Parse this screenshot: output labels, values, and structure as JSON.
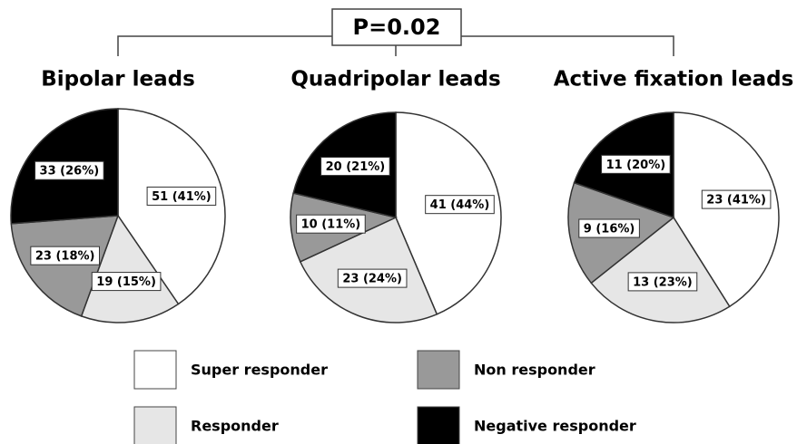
{
  "annotation": "P=0.02",
  "chart_data": [
    {
      "type": "pie",
      "title": "Bipolar leads",
      "categories": [
        "Super responder",
        "Responder",
        "Non responder",
        "Negative responder"
      ],
      "colors": [
        "#ffffff",
        "#e6e6e6",
        "#999999",
        "#000000"
      ],
      "values": [
        51,
        19,
        23,
        33
      ],
      "value_labels": [
        "51 (41%)",
        "19 (15%)",
        "23 (18%)",
        "33 (26%)"
      ]
    },
    {
      "type": "pie",
      "title": "Quadripolar leads",
      "categories": [
        "Super responder",
        "Responder",
        "Non responder",
        "Negative responder"
      ],
      "colors": [
        "#ffffff",
        "#e6e6e6",
        "#999999",
        "#000000"
      ],
      "values": [
        41,
        23,
        10,
        20
      ],
      "value_labels": [
        "41 (44%)",
        "23 (24%)",
        "10 (11%)",
        "20 (21%)"
      ]
    },
    {
      "type": "pie",
      "title": "Active fixation leads",
      "categories": [
        "Super responder",
        "Responder",
        "Non responder",
        "Negative responder"
      ],
      "colors": [
        "#ffffff",
        "#e6e6e6",
        "#999999",
        "#000000"
      ],
      "values": [
        23,
        13,
        9,
        11
      ],
      "value_labels": [
        "23 (41%)",
        "13 (23%)",
        "9 (16%)",
        "11 (20%)"
      ]
    }
  ]
}
